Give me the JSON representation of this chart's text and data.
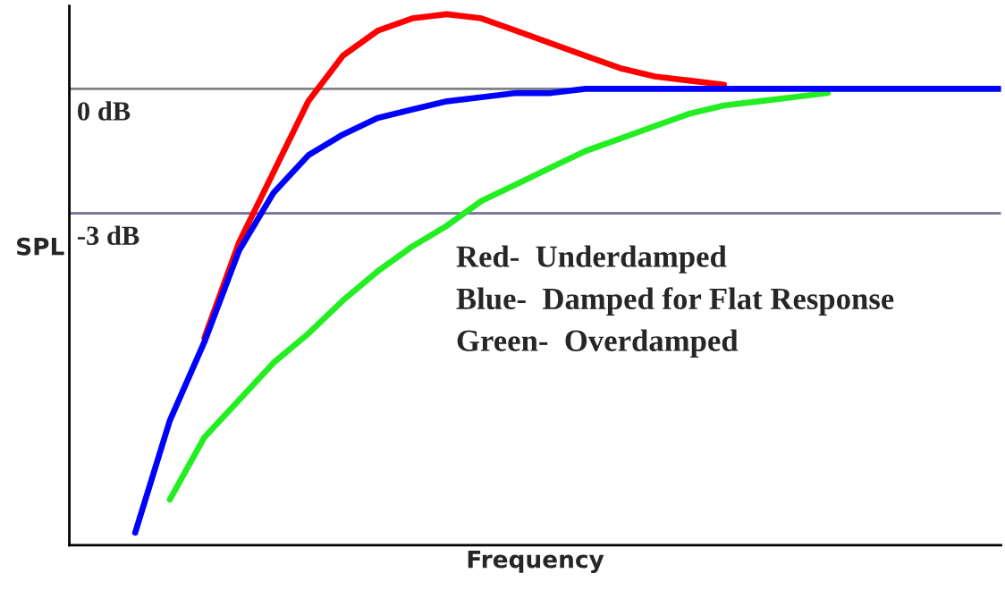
{
  "chart_data": {
    "type": "line",
    "xlabel": "Frequency",
    "ylabel": "SPL",
    "categories": [
      null,
      null,
      null,
      null,
      null,
      null,
      null,
      null,
      null,
      null,
      null,
      null,
      null,
      null,
      null,
      null,
      null,
      null,
      null,
      null,
      null,
      null,
      null,
      null,
      null,
      null,
      null
    ],
    "series": [
      {
        "color": "#ff0000",
        "values": [
          null,
          null,
          null,
          -6.0,
          -3.7,
          -2.0,
          -0.3,
          0.8,
          1.4,
          1.7,
          1.8,
          1.7,
          1.4,
          1.1,
          0.8,
          0.5,
          0.3,
          0.2,
          0.1,
          null,
          null,
          null,
          null,
          null,
          null,
          null,
          null
        ]
      },
      {
        "color": "#22ee22",
        "values": [
          null,
          null,
          -9.9,
          -8.4,
          -7.5,
          -6.6,
          -5.9,
          -5.1,
          -4.4,
          -3.8,
          -3.3,
          -2.7,
          -2.3,
          -1.9,
          -1.5,
          -1.2,
          -0.9,
          -0.6,
          -0.4,
          -0.3,
          -0.2,
          -0.1,
          null,
          null,
          null,
          null,
          null
        ]
      },
      {
        "color": "#0000ff",
        "values": [
          null,
          -10.7,
          -8.0,
          -6.1,
          -3.9,
          -2.5,
          -1.6,
          -1.1,
          -0.7,
          -0.5,
          -0.3,
          -0.2,
          -0.1,
          -0.1,
          0,
          0,
          0,
          0,
          0,
          0,
          0,
          0,
          0,
          0,
          0,
          0,
          0
        ]
      }
    ],
    "ylim": [
      -11,
      2
    ],
    "relative": false,
    "tick_labels": false,
    "legend": false,
    "grid": false,
    "marker": "none",
    "line_style": "solid",
    "ref_lines": [
      {
        "axis": "y",
        "value": 0,
        "label": "0 dB",
        "color": "#808080"
      },
      {
        "axis": "y",
        "value": -3,
        "label": "-3 dB",
        "color": "#707090"
      }
    ],
    "annotations": [
      "Red-  Underdamped",
      "Blue-  Damped for Flat Response",
      "Green-  Overdamped"
    ]
  }
}
